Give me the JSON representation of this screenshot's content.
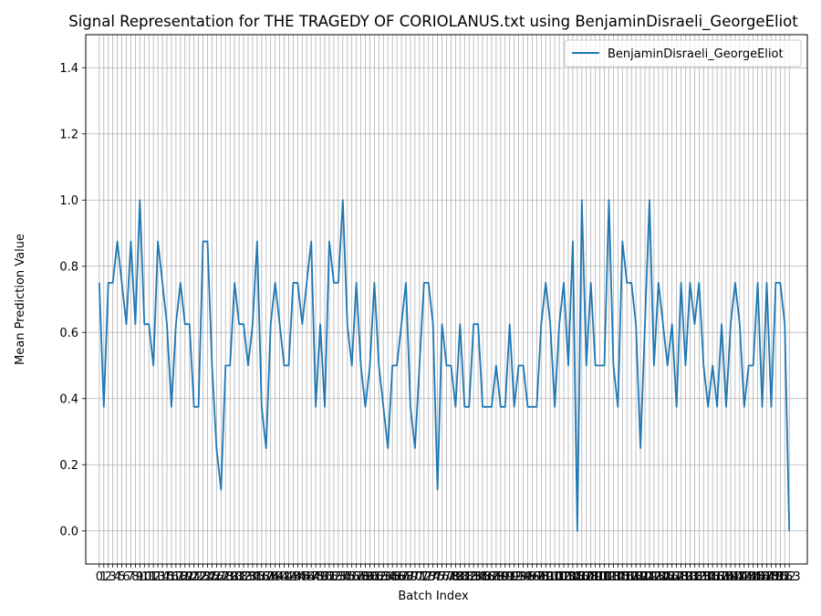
{
  "chart_data": {
    "type": "line",
    "title": "Signal Representation for THE TRAGEDY OF CORIOLANUS.txt using BenjaminDisraeli_GeorgeEliot",
    "xlabel": "Batch Index",
    "ylabel": "Mean Prediction Value",
    "ylim": [
      -0.1,
      1.5
    ],
    "xlim": [
      -3,
      157
    ],
    "yticks": [
      "0.0",
      "0.2",
      "0.4",
      "0.6",
      "0.8",
      "1.0",
      "1.2",
      "1.4"
    ],
    "grid": true,
    "legend": {
      "position": "top-right",
      "entries": [
        "BenjaminDisraeli_GeorgeEliot"
      ]
    },
    "colors": {
      "series": "#1f77b4",
      "grid": "#b0b0b0"
    },
    "series": [
      {
        "name": "BenjaminDisraeli_GeorgeEliot",
        "x_start": 0,
        "values": [
          0.75,
          0.375,
          0.75,
          0.75,
          0.875,
          0.75,
          0.625,
          0.875,
          0.625,
          1.0,
          0.625,
          0.625,
          0.5,
          0.875,
          0.75,
          0.625,
          0.375,
          0.625,
          0.75,
          0.625,
          0.625,
          0.375,
          0.375,
          0.875,
          0.875,
          0.5,
          0.25,
          0.125,
          0.5,
          0.5,
          0.75,
          0.625,
          0.625,
          0.5,
          0.625,
          0.875,
          0.375,
          0.25,
          0.625,
          0.75,
          0.625,
          0.5,
          0.5,
          0.75,
          0.75,
          0.625,
          0.75,
          0.875,
          0.375,
          0.625,
          0.375,
          0.875,
          0.75,
          0.75,
          1.0,
          0.625,
          0.5,
          0.75,
          0.5,
          0.375,
          0.5,
          0.75,
          0.5,
          0.375,
          0.25,
          0.5,
          0.5,
          0.625,
          0.75,
          0.375,
          0.25,
          0.5,
          0.75,
          0.75,
          0.625,
          0.125,
          0.625,
          0.5,
          0.5,
          0.375,
          0.625,
          0.375,
          0.375,
          0.625,
          0.625,
          0.375,
          0.375,
          0.375,
          0.5,
          0.375,
          0.375,
          0.625,
          0.375,
          0.5,
          0.5,
          0.375,
          0.375,
          0.375,
          0.625,
          0.75,
          0.625,
          0.375,
          0.625,
          0.75,
          0.5,
          0.875,
          0.0,
          1.0,
          0.5,
          0.75,
          0.5,
          0.5,
          0.5,
          1.0,
          0.5,
          0.375,
          0.875,
          0.75,
          0.75,
          0.625,
          0.25,
          0.625,
          1.0,
          0.5,
          0.75,
          0.625,
          0.5,
          0.625,
          0.375,
          0.75,
          0.5,
          0.75,
          0.625,
          0.75,
          0.5,
          0.375,
          0.5,
          0.375,
          0.625,
          0.375,
          0.625,
          0.75,
          0.625,
          0.375,
          0.5,
          0.5,
          0.75,
          0.375,
          0.75,
          0.375,
          0.75,
          0.75,
          0.625,
          0.0
        ]
      }
    ]
  }
}
